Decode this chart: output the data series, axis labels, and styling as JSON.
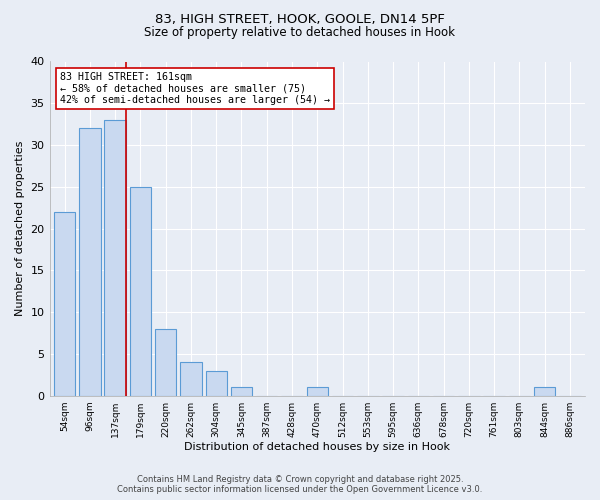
{
  "title_line1": "83, HIGH STREET, HOOK, GOOLE, DN14 5PF",
  "title_line2": "Size of property relative to detached houses in Hook",
  "xlabel": "Distribution of detached houses by size in Hook",
  "ylabel": "Number of detached properties",
  "bar_labels": [
    "54sqm",
    "96sqm",
    "137sqm",
    "179sqm",
    "220sqm",
    "262sqm",
    "304sqm",
    "345sqm",
    "387sqm",
    "428sqm",
    "470sqm",
    "512sqm",
    "553sqm",
    "595sqm",
    "636sqm",
    "678sqm",
    "720sqm",
    "761sqm",
    "803sqm",
    "844sqm",
    "886sqm"
  ],
  "bar_values": [
    22,
    32,
    33,
    25,
    8,
    4,
    3,
    1,
    0,
    0,
    1,
    0,
    0,
    0,
    0,
    0,
    0,
    0,
    0,
    1,
    0
  ],
  "bar_color": "#c9d9f0",
  "bar_edge_color": "#5b9bd5",
  "highlight_index": 2,
  "highlight_line_color": "#cc0000",
  "annotation_text": "83 HIGH STREET: 161sqm\n← 58% of detached houses are smaller (75)\n42% of semi-detached houses are larger (54) →",
  "annotation_box_color": "#ffffff",
  "annotation_box_edge": "#cc0000",
  "ylim": [
    0,
    40
  ],
  "yticks": [
    0,
    5,
    10,
    15,
    20,
    25,
    30,
    35,
    40
  ],
  "bg_color": "#e8edf5",
  "plot_bg_color": "#e8edf5",
  "footer_line1": "Contains HM Land Registry data © Crown copyright and database right 2025.",
  "footer_line2": "Contains public sector information licensed under the Open Government Licence v3.0."
}
